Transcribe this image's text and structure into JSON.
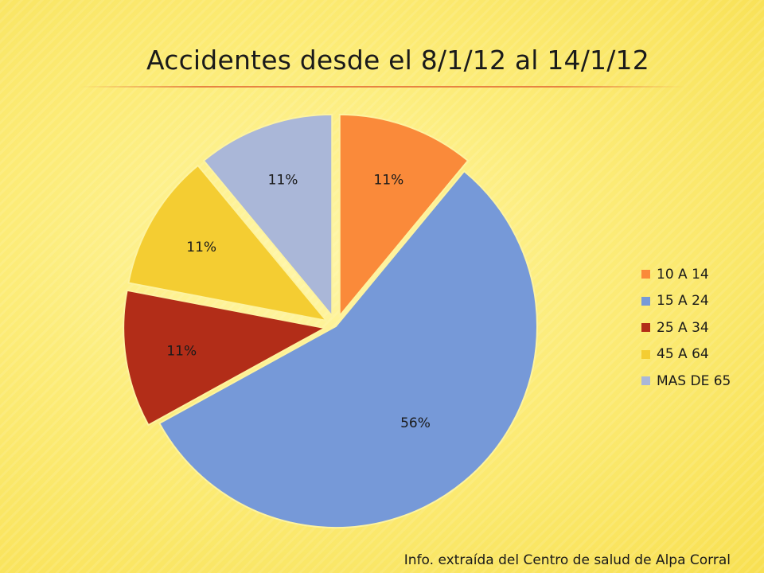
{
  "title": "Accidentes desde el 8/1/12 al 14/1/12",
  "source_note": "Info. extraída del Centro de salud de Alpa Corral",
  "chart_data": {
    "type": "pie",
    "title": "Accidentes desde el 8/1/12 al 14/1/12",
    "legend_position": "right",
    "slices": [
      {
        "label": "10 A 14",
        "value": 11,
        "display": "11%",
        "color": "#fa8a3a",
        "exploded": true
      },
      {
        "label": "15 A 24",
        "value": 56,
        "display": "56%",
        "color": "#7699d8",
        "exploded": false
      },
      {
        "label": "25 A 34",
        "value": 11,
        "display": "11%",
        "color": "#b22d18",
        "exploded": true
      },
      {
        "label": "45 A 64",
        "value": 11,
        "display": "11%",
        "color": "#f4cd32",
        "exploded": true
      },
      {
        "label": "MAS DE 65",
        "value": 11,
        "display": "11%",
        "color": "#aab7d8",
        "exploded": true
      }
    ]
  }
}
